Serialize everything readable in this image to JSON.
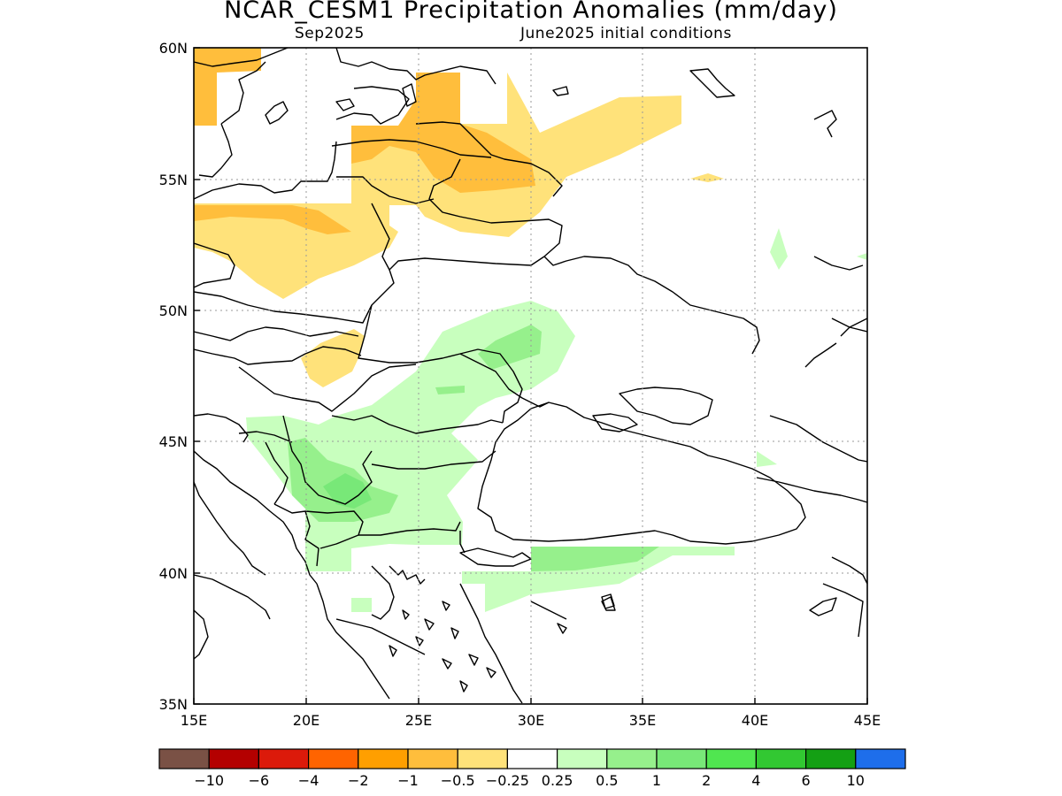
{
  "header": {
    "title": "NCAR_CESM1 Precipitation Anomalies (mm/day)",
    "valid_month": "Sep2025",
    "init_conditions": "June2025 initial conditions"
  },
  "map": {
    "lon_range": [
      15,
      45
    ],
    "lat_range": [
      35,
      60
    ],
    "x_ticks": [
      "15E",
      "20E",
      "25E",
      "30E",
      "35E",
      "40E",
      "45E"
    ],
    "y_ticks": [
      "35N",
      "40N",
      "45N",
      "50N",
      "55N",
      "60N"
    ],
    "grid": true
  },
  "colorbar": {
    "colors": [
      "#7a5145",
      "#b40000",
      "#dc1a0a",
      "#ff6400",
      "#ff9f00",
      "#ffbe3c",
      "#ffe27a",
      "#ffffff",
      "#c8ffbe",
      "#96f08c",
      "#78e878",
      "#50e650",
      "#32c832",
      "#14a014",
      "#1e6eeb"
    ],
    "labels": [
      "-10",
      "-6",
      "-4",
      "-2",
      "-1",
      "-0.5",
      "-0.25",
      "0.25",
      "0.5",
      "1",
      "2",
      "4",
      "6",
      "10"
    ]
  }
}
